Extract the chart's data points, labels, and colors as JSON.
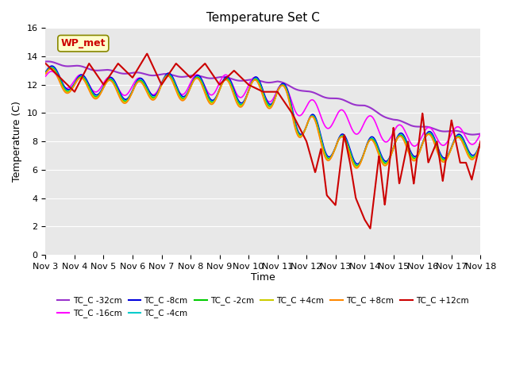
{
  "title": "Temperature Set C",
  "xlabel": "Time",
  "ylabel": "Temperature (C)",
  "ylim": [
    0,
    16
  ],
  "yticks": [
    0,
    2,
    4,
    6,
    8,
    10,
    12,
    14,
    16
  ],
  "bg_color": "#e8e8e8",
  "wp_met_label": "WP_met",
  "wp_met_color": "#cc0000",
  "wp_met_bg": "#ffffcc",
  "series_order": [
    "TC_C -32cm",
    "TC_C -16cm",
    "TC_C -8cm",
    "TC_C -4cm",
    "TC_C -2cm",
    "TC_C +4cm",
    "TC_C +8cm",
    "TC_C +12cm"
  ],
  "series": {
    "TC_C -32cm": {
      "color": "#9933cc",
      "lw": 1.5
    },
    "TC_C -16cm": {
      "color": "#ff00ff",
      "lw": 1.2
    },
    "TC_C -8cm": {
      "color": "#0000dd",
      "lw": 1.2
    },
    "TC_C -4cm": {
      "color": "#00cccc",
      "lw": 1.2
    },
    "TC_C -2cm": {
      "color": "#00cc00",
      "lw": 1.2
    },
    "TC_C +4cm": {
      "color": "#cccc00",
      "lw": 1.2
    },
    "TC_C +8cm": {
      "color": "#ff8800",
      "lw": 1.2
    },
    "TC_C +12cm": {
      "color": "#cc0000",
      "lw": 1.5
    }
  },
  "x_tick_labels": [
    "Nov 3",
    "Nov 4",
    "Nov 5",
    "Nov 6",
    "Nov 7",
    "Nov 8",
    "Nov 9",
    "Nov 10",
    "Nov 11",
    "Nov 12",
    "Nov 13",
    "Nov 14",
    "Nov 15",
    "Nov 16",
    "Nov 17",
    "Nov 18"
  ]
}
